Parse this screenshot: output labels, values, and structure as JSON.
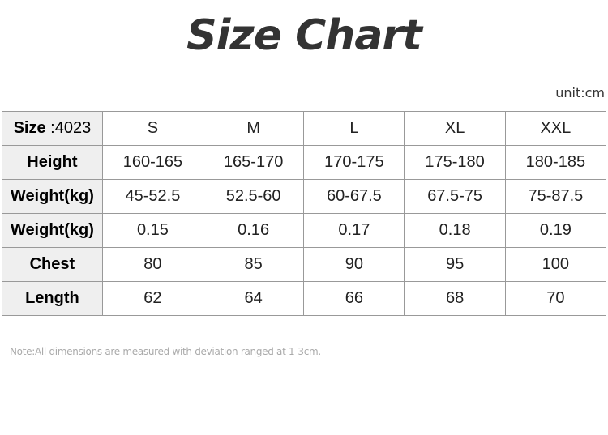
{
  "title": "Size Chart",
  "unit": "unit:cm",
  "header": {
    "label": "Size",
    "code": ":4023",
    "sizes": [
      "S",
      "M",
      "L",
      "XL",
      "XXL"
    ]
  },
  "rows": [
    {
      "label": "Height",
      "values": [
        "160-165",
        "165-170",
        "170-175",
        "175-180",
        "180-185"
      ]
    },
    {
      "label": "Weight(kg)",
      "values": [
        "45-52.5",
        "52.5-60",
        "60-67.5",
        "67.5-75",
        "75-87.5"
      ]
    },
    {
      "label": "Weight(kg)",
      "values": [
        "0.15",
        "0.16",
        "0.17",
        "0.18",
        "0.19"
      ]
    },
    {
      "label": "Chest",
      "values": [
        "80",
        "85",
        "90",
        "95",
        "100"
      ]
    },
    {
      "label": "Length",
      "values": [
        "62",
        "64",
        "66",
        "68",
        "70"
      ]
    }
  ],
  "note": "Note:All dimensions are measured with deviation ranged at 1-3cm."
}
